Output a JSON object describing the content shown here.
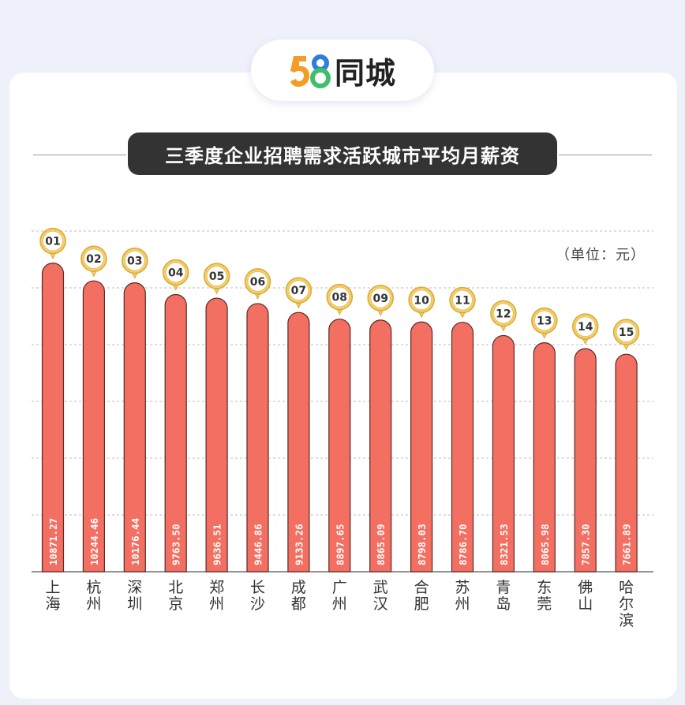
{
  "brand": {
    "logo_number": "58",
    "logo_name": "同城"
  },
  "title": "三季度企业招聘需求活跃城市平均月薪资",
  "unit_label": "（单位：元）",
  "colors": {
    "bar": "#f36f62",
    "bar_stroke": "#5a2a26",
    "pin": "#f5cf6a",
    "pin_stroke": "#d9a937",
    "title_bg": "#333333",
    "card_bg": "#ffffff",
    "page_bg": "#eef0fa"
  },
  "chart_data": {
    "type": "bar",
    "title": "三季度企业招聘需求活跃城市平均月薪资",
    "unit": "（单位：元）",
    "categories": [
      "上海",
      "杭州",
      "深圳",
      "北京",
      "郑州",
      "长沙",
      "成都",
      "广州",
      "武汉",
      "合肥",
      "苏州",
      "青岛",
      "东莞",
      "佛山",
      "哈尔滨"
    ],
    "ranks": [
      "01",
      "02",
      "03",
      "04",
      "05",
      "06",
      "07",
      "08",
      "09",
      "10",
      "11",
      "12",
      "13",
      "14",
      "15"
    ],
    "value_labels": [
      "10871.27",
      "10244.46",
      "10176.44",
      "9763.50",
      "9636.51",
      "9446.86",
      "9133.26",
      "8897.65",
      "8865.09",
      "8798.03",
      "8786.70",
      "8321.53",
      "8065.98",
      "7857.30",
      "7661.89"
    ],
    "values": [
      10871.27,
      10244.46,
      10176.44,
      9763.5,
      9636.51,
      9446.86,
      9133.26,
      8897.65,
      8865.09,
      8798.03,
      8786.7,
      8321.53,
      8065.98,
      7857.3,
      7661.89
    ],
    "ylim": [
      0,
      12000
    ],
    "grid": true,
    "legend": "none"
  }
}
